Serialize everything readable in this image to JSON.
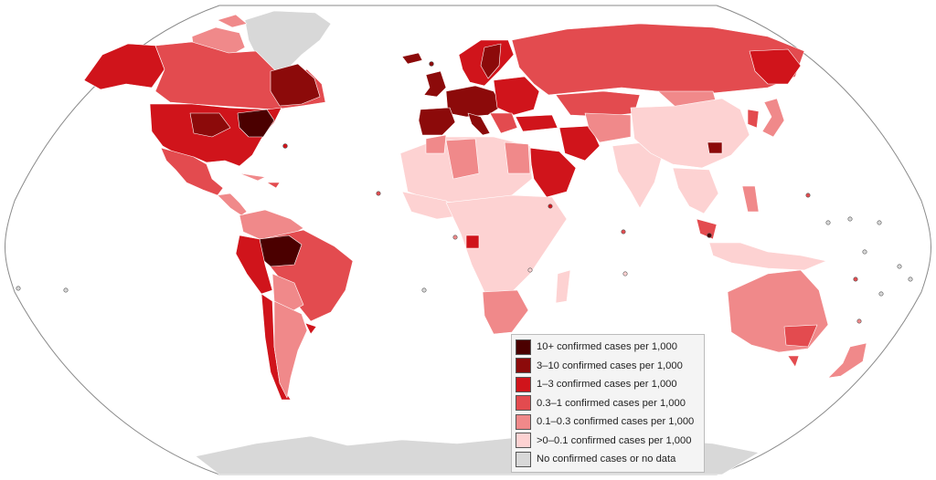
{
  "legend": {
    "items": [
      {
        "label": "10+ confirmed cases per 1,000",
        "color": "#4b0000"
      },
      {
        "label": "3–10 confirmed cases per 1,000",
        "color": "#8c0a0a"
      },
      {
        "label": "1–3 confirmed cases per 1,000",
        "color": "#d0141b"
      },
      {
        "label": "0.3–1 confirmed cases per 1,000",
        "color": "#e34b4f"
      },
      {
        "label": "0.1–0.3 confirmed cases per 1,000",
        "color": "#f0898a"
      },
      {
        "label": ">0–0.1 confirmed cases per 1,000",
        "color": "#fdd2d2"
      },
      {
        "label": "No confirmed cases or no data",
        "color": "#d8d8d8"
      }
    ]
  },
  "colors": {
    "ocean": "#ffffff",
    "outline": "#8a8a8a",
    "border": "#ffffff"
  }
}
